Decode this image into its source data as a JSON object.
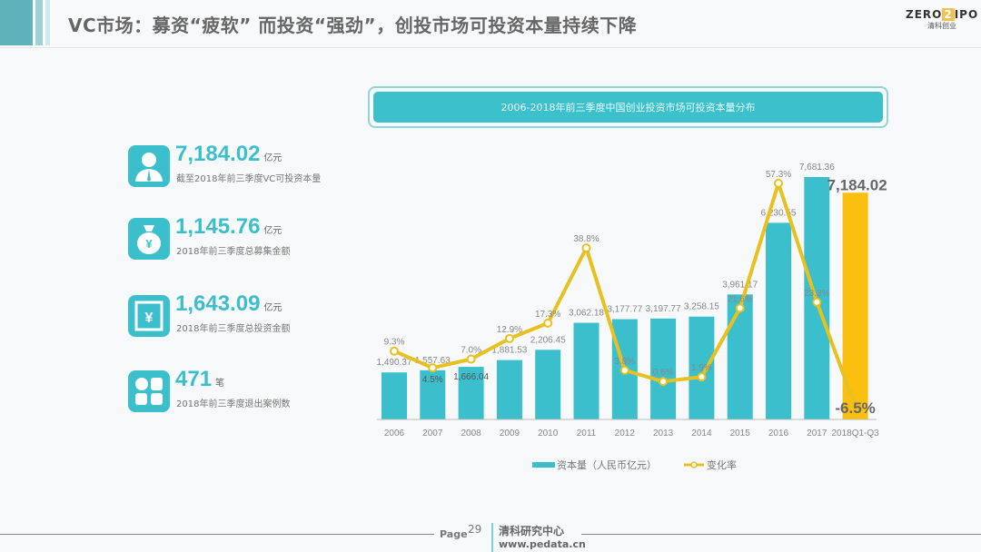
{
  "header": {
    "title": "VC市场：募资“疲软” 而投资“强劲”，创投市场可投资本量持续下降",
    "logo_text": "ZERO2IPO",
    "logo_sub": "清科创业"
  },
  "stats": [
    {
      "icon": "person-icon",
      "value": "7,184.02",
      "unit": "亿元",
      "desc": "截至2018年前三季度VC可投资本量"
    },
    {
      "icon": "money-bag-icon",
      "value": "1,145.76",
      "unit": "亿元",
      "desc": "2018年前三季度总募集金额"
    },
    {
      "icon": "yen-icon",
      "value": "1,643.09",
      "unit": "亿元",
      "desc": "2018年前三季度总投资金额"
    },
    {
      "icon": "grid-icon",
      "value": "471",
      "unit": "笔",
      "desc": "2018年前三季度退出案例数"
    }
  ],
  "chart_data": {
    "type": "bar+line",
    "title": "2006-2018年前三季度中国创业投资市场可投资本量分布",
    "categories": [
      "2006",
      "2007",
      "2008",
      "2009",
      "2010",
      "2011",
      "2012",
      "2013",
      "2014",
      "2015",
      "2016",
      "2017",
      "2018Q1-Q3"
    ],
    "series": [
      {
        "name": "资本量（人民币亿元）",
        "type": "bar",
        "color": "#3bbfcc",
        "highlight_color": "#fbbf0f",
        "values": [
          1490.37,
          1557.63,
          1666.04,
          1881.53,
          2206.45,
          3062.18,
          3177.77,
          3197.77,
          3258.15,
          3961.17,
          6230.55,
          7681.36,
          7184.02
        ],
        "labels": [
          "1,490.37",
          "1,557.63",
          "1,666.04",
          "1,881.53",
          "2,206.45",
          "3,062.18",
          "3,177.77",
          "3,197.77",
          "3,258.15",
          "3,961.17",
          "6,230.55",
          "7,681.36",
          "7,184.02"
        ]
      },
      {
        "name": "变化率",
        "type": "line",
        "color": "#e8c020",
        "values": [
          9.3,
          4.5,
          7.0,
          12.9,
          17.3,
          38.8,
          3.8,
          0.6,
          1.9,
          21.6,
          57.3,
          23.3,
          -6.5
        ],
        "labels": [
          "9.3%",
          "4.5%",
          "7.0%",
          "12.9%",
          "17.3%",
          "38.8%",
          "3.8%",
          "0.6%",
          "1.9%",
          "21.6%",
          "57.3%",
          "23.3%",
          "-6.5%"
        ]
      }
    ],
    "legend": "bottom"
  },
  "footer": {
    "page_label": "Page",
    "page_number": "29",
    "org": "清科研究中心",
    "url": "www.pedata.cn"
  }
}
